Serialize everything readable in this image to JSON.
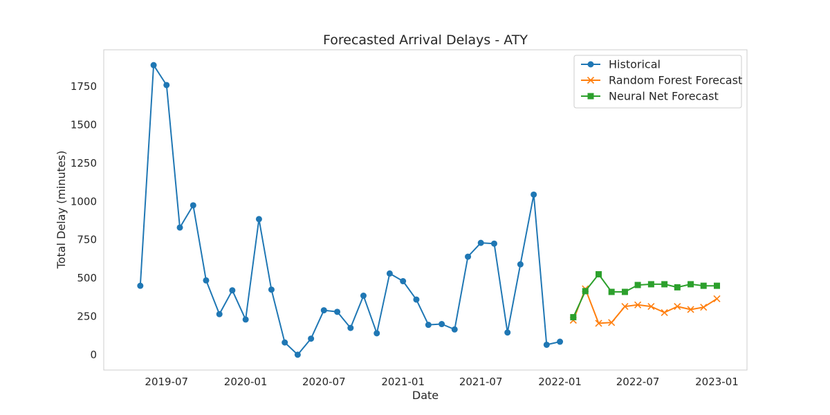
{
  "chart_data": {
    "type": "line",
    "title": "Forecasted Arrival Delays - ATY",
    "xlabel": "Date",
    "ylabel": "Total Delay (minutes)",
    "xlim": [
      "2019-02-05",
      "2023-03-12"
    ],
    "ylim": [
      -100,
      1990
    ],
    "x_ticks": [
      "2019-07",
      "2020-01",
      "2020-07",
      "2021-01",
      "2021-07",
      "2022-01",
      "2022-07",
      "2023-01"
    ],
    "y_ticks": [
      0,
      250,
      500,
      750,
      1000,
      1250,
      1500,
      1750
    ],
    "grid": false,
    "legend_position": "top-right",
    "series": [
      {
        "name": "Historical",
        "color": "#1f77b4",
        "marker": "circle",
        "points": [
          {
            "x": "2019-05-01",
            "y": 450
          },
          {
            "x": "2019-06-01",
            "y": 1890
          },
          {
            "x": "2019-07-01",
            "y": 1760
          },
          {
            "x": "2019-08-01",
            "y": 830
          },
          {
            "x": "2019-09-01",
            "y": 975
          },
          {
            "x": "2019-10-01",
            "y": 485
          },
          {
            "x": "2019-11-01",
            "y": 265
          },
          {
            "x": "2019-12-01",
            "y": 420
          },
          {
            "x": "2020-01-01",
            "y": 230
          },
          {
            "x": "2020-02-01",
            "y": 885
          },
          {
            "x": "2020-03-01",
            "y": 425
          },
          {
            "x": "2020-04-01",
            "y": 80
          },
          {
            "x": "2020-05-01",
            "y": 0
          },
          {
            "x": "2020-06-01",
            "y": 105
          },
          {
            "x": "2020-07-01",
            "y": 290
          },
          {
            "x": "2020-08-01",
            "y": 280
          },
          {
            "x": "2020-09-01",
            "y": 175
          },
          {
            "x": "2020-10-01",
            "y": 385
          },
          {
            "x": "2020-11-01",
            "y": 140
          },
          {
            "x": "2020-12-01",
            "y": 530
          },
          {
            "x": "2021-01-01",
            "y": 480
          },
          {
            "x": "2021-02-01",
            "y": 360
          },
          {
            "x": "2021-03-01",
            "y": 195
          },
          {
            "x": "2021-04-01",
            "y": 200
          },
          {
            "x": "2021-05-01",
            "y": 165
          },
          {
            "x": "2021-06-01",
            "y": 640
          },
          {
            "x": "2021-07-01",
            "y": 730
          },
          {
            "x": "2021-08-01",
            "y": 725
          },
          {
            "x": "2021-09-01",
            "y": 145
          },
          {
            "x": "2021-10-01",
            "y": 590
          },
          {
            "x": "2021-11-01",
            "y": 1045
          },
          {
            "x": "2021-12-01",
            "y": 65
          },
          {
            "x": "2022-01-01",
            "y": 85
          }
        ]
      },
      {
        "name": "Random Forest Forecast",
        "color": "#ff7f0e",
        "marker": "x",
        "points": [
          {
            "x": "2022-02-01",
            "y": 225
          },
          {
            "x": "2022-03-01",
            "y": 430
          },
          {
            "x": "2022-04-01",
            "y": 205
          },
          {
            "x": "2022-05-01",
            "y": 210
          },
          {
            "x": "2022-06-01",
            "y": 315
          },
          {
            "x": "2022-07-01",
            "y": 325
          },
          {
            "x": "2022-08-01",
            "y": 315
          },
          {
            "x": "2022-09-01",
            "y": 275
          },
          {
            "x": "2022-10-01",
            "y": 315
          },
          {
            "x": "2022-11-01",
            "y": 295
          },
          {
            "x": "2022-12-01",
            "y": 310
          },
          {
            "x": "2023-01-01",
            "y": 365
          }
        ]
      },
      {
        "name": "Neural Net Forecast",
        "color": "#2ca02c",
        "marker": "square",
        "points": [
          {
            "x": "2022-02-01",
            "y": 245
          },
          {
            "x": "2022-03-01",
            "y": 415
          },
          {
            "x": "2022-04-01",
            "y": 525
          },
          {
            "x": "2022-05-01",
            "y": 410
          },
          {
            "x": "2022-06-01",
            "y": 410
          },
          {
            "x": "2022-07-01",
            "y": 455
          },
          {
            "x": "2022-08-01",
            "y": 460
          },
          {
            "x": "2022-09-01",
            "y": 460
          },
          {
            "x": "2022-10-01",
            "y": 440
          },
          {
            "x": "2022-11-01",
            "y": 460
          },
          {
            "x": "2022-12-01",
            "y": 450
          },
          {
            "x": "2023-01-01",
            "y": 450
          }
        ]
      }
    ]
  }
}
